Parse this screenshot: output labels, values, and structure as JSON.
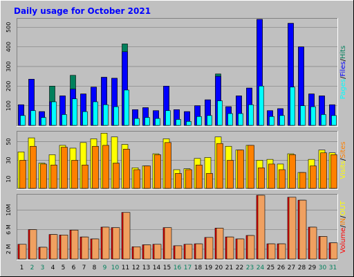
{
  "chart_data": {
    "title": "Daily usage for October 2021",
    "type": "bar",
    "colors": {
      "background": "#c0c0c0",
      "panel": "#c0c0c0",
      "hits": "#00805c",
      "files": "#0000ff",
      "pages": "#00ffff",
      "visits": "#ffff00",
      "sites": "#ff8000",
      "kbytes": "#ff0000",
      "weekend_label": "#00805c",
      "weekday_label": "#000000"
    },
    "days": [
      "1",
      "2",
      "3",
      "4",
      "5",
      "6",
      "7",
      "8",
      "9",
      "10",
      "11",
      "12",
      "13",
      "14",
      "15",
      "16",
      "17",
      "18",
      "19",
      "20",
      "21",
      "22",
      "23",
      "24",
      "25",
      "26",
      "27",
      "28",
      "29",
      "30",
      "31"
    ],
    "weekend_days": [
      "2",
      "3",
      "9",
      "10",
      "16",
      "17",
      "23",
      "24",
      "30",
      "31"
    ],
    "panels": [
      {
        "key": "usage",
        "ylim": [
          0,
          540
        ],
        "ticks": [
          "100",
          "200",
          "300",
          "400",
          "500"
        ],
        "tick_values": [
          100,
          200,
          300,
          400,
          500
        ],
        "legend": [
          {
            "label": "Pages",
            "color": "#00ffff"
          },
          {
            "label": "/",
            "color": "#000000"
          },
          {
            "label": "Files",
            "color": "#0000ff"
          },
          {
            "label": "/",
            "color": "#000000"
          },
          {
            "label": "Hits",
            "color": "#00805c"
          }
        ],
        "series": [
          {
            "name": "Hits",
            "values": [
              105,
              235,
              70,
              200,
              150,
              255,
              160,
              195,
              245,
              240,
              415,
              80,
              90,
              75,
              200,
              80,
              70,
              100,
              130,
              262,
              95,
              150,
              190,
              540,
              75,
              85,
              520,
              400,
              160,
              150,
              105
            ]
          },
          {
            "name": "Files",
            "values": [
              105,
              235,
              70,
              120,
              150,
              185,
              160,
              195,
              245,
              240,
              375,
              80,
              90,
              75,
              200,
              80,
              70,
              100,
              130,
              250,
              95,
              150,
              190,
              540,
              75,
              85,
              520,
              400,
              160,
              150,
              105
            ]
          },
          {
            "name": "Pages",
            "values": [
              50,
              75,
              40,
              120,
              55,
              135,
              70,
              120,
              105,
              95,
              180,
              35,
              40,
              35,
              75,
              30,
              20,
              45,
              50,
              125,
              60,
              60,
              105,
              200,
              45,
              50,
              195,
              100,
              95,
              55,
              50
            ]
          }
        ]
      },
      {
        "key": "visits",
        "ylim": [
          0,
          60
        ],
        "ticks": [
          "10",
          "30",
          "50"
        ],
        "tick_values": [
          10,
          30,
          50
        ],
        "legend": [
          {
            "label": "Visits",
            "color": "#ffff00"
          },
          {
            "label": "/",
            "color": "#000000"
          },
          {
            "label": "Sites",
            "color": "#ff8000"
          }
        ],
        "series": [
          {
            "name": "Visits",
            "values": [
              39,
              54,
              27,
              36,
              46,
              43,
              49,
              53,
              59,
              55,
              47,
              22,
              24,
              37,
              53,
              20,
              21,
              32,
              33,
              55,
              45,
              41,
              46,
              30,
              31,
              26,
              37,
              17,
              31,
              41,
              38
            ]
          },
          {
            "name": "Sites",
            "values": [
              30,
              45,
              26,
              25,
              44,
              30,
              25,
              45,
              46,
              27,
              42,
              20,
              24,
              36,
              49,
              16,
              20,
              25,
              16,
              48,
              30,
              41,
              46,
              22,
              26,
              20,
              36,
              17,
              24,
              38,
              36
            ]
          }
        ]
      },
      {
        "key": "volume",
        "ylim": [
          0,
          13
        ],
        "ticks": [
          "2 M",
          "6 M",
          "10M"
        ],
        "tick_values": [
          2,
          6,
          10
        ],
        "legend": [
          {
            "label": "Volume",
            "color": "#ff0000"
          },
          {
            "label": "/",
            "color": "#000000"
          },
          {
            "label": "IN",
            "color": "#ff8000"
          },
          {
            "label": "/",
            "color": "#000000"
          },
          {
            "label": "OUT",
            "color": "#ffff00"
          }
        ],
        "series": [
          {
            "name": "Volume",
            "values": [
              3,
              6,
              2.4,
              5,
              4.9,
              5.9,
              4.5,
              4.1,
              6.5,
              6.4,
              9.5,
              2.5,
              2.9,
              3,
              6.4,
              2.7,
              3,
              3.1,
              4.4,
              6.3,
              4.5,
              4.1,
              4.8,
              13,
              3.1,
              3.1,
              12.6,
              12,
              6.5,
              4.6,
              3.3
            ]
          },
          {
            "name": "IN",
            "values": [
              3,
              6,
              2.4,
              5,
              4.9,
              5.9,
              4.5,
              4.1,
              6.5,
              6.4,
              9.5,
              2.5,
              2.9,
              3,
              6.4,
              2.7,
              3,
              3.1,
              4.4,
              6.3,
              4.5,
              4.1,
              4.8,
              13,
              3.1,
              3.1,
              12.6,
              12,
              6.5,
              4.6,
              3.3
            ]
          }
        ]
      }
    ]
  }
}
